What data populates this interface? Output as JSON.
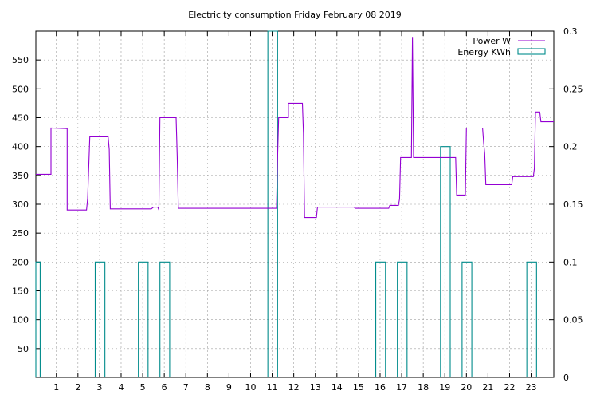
{
  "chart_data": {
    "type": "line",
    "title": "Electricity consumption Friday February 08 2019",
    "x": {
      "ticks": [
        1,
        2,
        3,
        4,
        5,
        6,
        7,
        8,
        9,
        10,
        11,
        12,
        13,
        14,
        15,
        16,
        17,
        18,
        19,
        20,
        21,
        22,
        23
      ],
      "xlim": [
        0.05,
        24.05
      ]
    },
    "y_left": {
      "ticks": [
        50,
        100,
        150,
        200,
        250,
        300,
        350,
        400,
        450,
        500,
        550
      ],
      "ylim": [
        0,
        600
      ]
    },
    "y_right": {
      "ticks": [
        "0",
        "0.05",
        "0.1",
        "0.15",
        "0.2",
        "0.25",
        "0.3"
      ],
      "ylim": [
        0,
        0.3
      ]
    },
    "grid": true,
    "legend_position": "top-right",
    "series": [
      {
        "name": "Power W",
        "axis": "left",
        "color": "#9400d3",
        "points": [
          [
            0.05,
            352
          ],
          [
            0.75,
            352
          ],
          [
            0.75,
            432
          ],
          [
            1.5,
            431
          ],
          [
            1.5,
            290
          ],
          [
            2.4,
            290
          ],
          [
            2.45,
            310
          ],
          [
            2.55,
            417
          ],
          [
            3.4,
            417
          ],
          [
            3.45,
            395
          ],
          [
            3.5,
            292
          ],
          [
            5.4,
            292
          ],
          [
            5.5,
            295
          ],
          [
            5.7,
            295
          ],
          [
            5.75,
            290
          ],
          [
            5.8,
            450
          ],
          [
            6.55,
            450
          ],
          [
            6.6,
            383
          ],
          [
            6.65,
            293
          ],
          [
            11.1,
            293
          ],
          [
            11.2,
            293
          ],
          [
            11.25,
            380
          ],
          [
            11.3,
            450
          ],
          [
            11.75,
            450
          ],
          [
            11.75,
            475
          ],
          [
            12.4,
            475
          ],
          [
            12.45,
            423
          ],
          [
            12.5,
            277
          ],
          [
            13.05,
            277
          ],
          [
            13.1,
            295
          ],
          [
            14.8,
            295
          ],
          [
            14.85,
            293
          ],
          [
            16.4,
            293
          ],
          [
            16.45,
            298
          ],
          [
            16.85,
            298
          ],
          [
            16.9,
            309
          ],
          [
            16.95,
            381
          ],
          [
            17.45,
            381
          ],
          [
            17.5,
            590
          ],
          [
            17.55,
            381
          ],
          [
            19.5,
            381
          ],
          [
            19.55,
            316
          ],
          [
            19.95,
            316
          ],
          [
            20.0,
            432
          ],
          [
            20.75,
            432
          ],
          [
            20.8,
            406
          ],
          [
            20.85,
            388
          ],
          [
            20.9,
            334
          ],
          [
            22.1,
            334
          ],
          [
            22.15,
            348
          ],
          [
            23.1,
            348
          ],
          [
            23.15,
            362
          ],
          [
            23.2,
            460
          ],
          [
            23.4,
            460
          ],
          [
            23.45,
            443
          ],
          [
            24.05,
            443
          ]
        ]
      },
      {
        "name": "Energy KWh",
        "axis": "right",
        "color": "#008b8b",
        "type": "step-bars",
        "bars": [
          [
            0.05,
            0.25,
            0.1
          ],
          [
            2.8,
            3.25,
            0.1
          ],
          [
            4.8,
            5.25,
            0.1
          ],
          [
            5.8,
            6.25,
            0.1
          ],
          [
            10.8,
            11.25,
            0.3
          ],
          [
            15.8,
            16.25,
            0.1
          ],
          [
            16.8,
            17.25,
            0.1
          ],
          [
            18.8,
            19.25,
            0.2
          ],
          [
            19.8,
            20.25,
            0.1
          ],
          [
            22.8,
            23.25,
            0.1
          ]
        ]
      }
    ]
  }
}
